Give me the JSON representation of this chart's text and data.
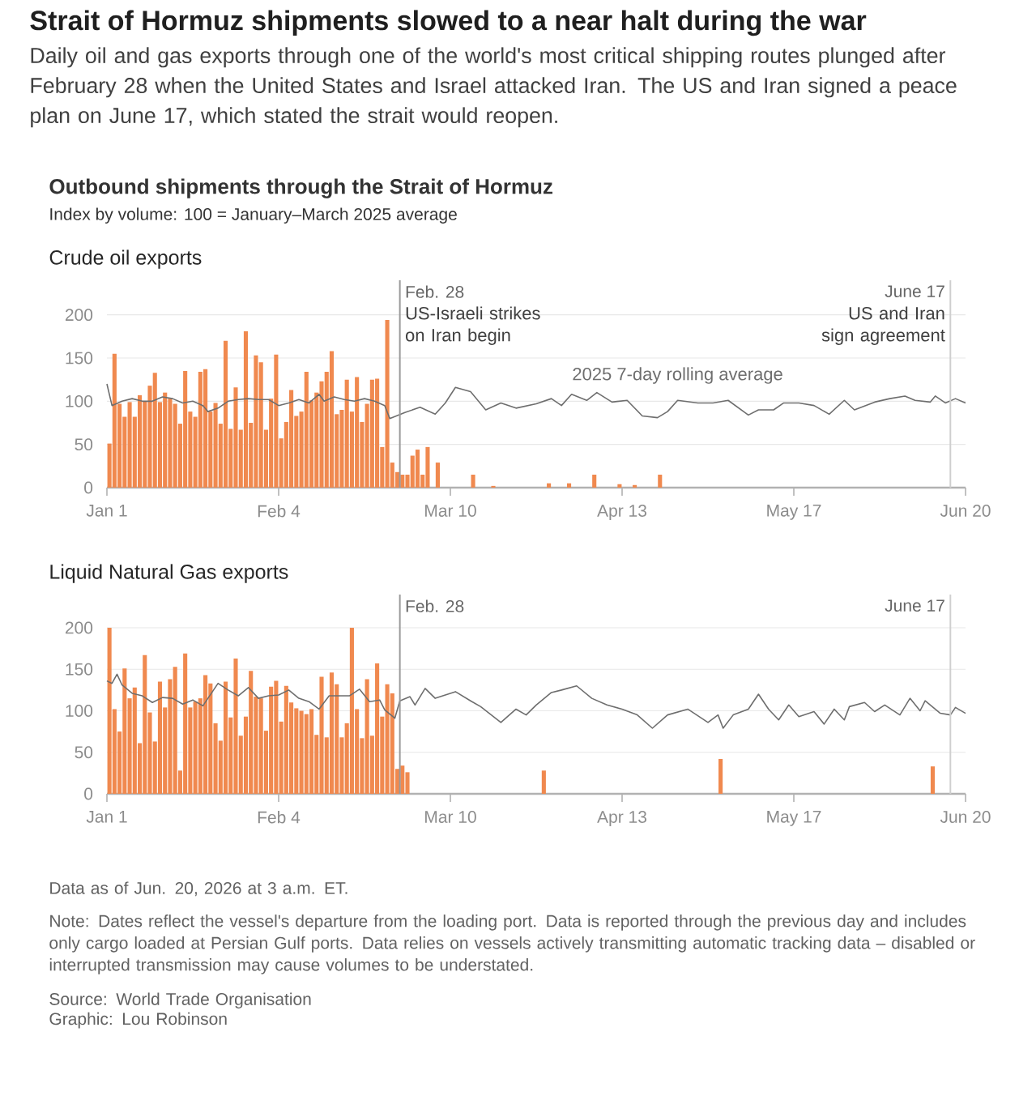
{
  "chart_data": [
    {
      "type": "other",
      "title": "Strait of Hormuz shipments slowed to a near halt during the war",
      "subtitle": "Daily oil and gas exports through one of the world's most critical shipping routes plunged after February 28 when the United States and Israel attacked Iran. The US and Iran signed a peace plan on June 17, which stated the strait would reopen.",
      "annotations": [
        "Outbound shipments through the Strait of Hormuz",
        "Index by volume: 100 = January–March 2025 average"
      ]
    },
    {
      "type": "bar",
      "title": "Crude oil exports",
      "xlim": [
        "2026-01-01",
        "2026-06-20"
      ],
      "ylim": [
        0,
        240
      ],
      "xticks": [
        {
          "value": "2026-01-01",
          "label": "Jan 1"
        },
        {
          "value": "2026-02-04",
          "label": "Feb 4"
        },
        {
          "value": "2026-03-10",
          "label": "Mar 10"
        },
        {
          "value": "2026-04-13",
          "label": "Apr 13"
        },
        {
          "value": "2026-05-17",
          "label": "May 17"
        },
        {
          "value": "2026-06-20",
          "label": "Jun 20"
        }
      ],
      "yticks": [
        0,
        50,
        100,
        150,
        200
      ],
      "grid": "y",
      "series": [
        {
          "type": "bar",
          "color": "#f0894f",
          "x": [
            "2026-01-01",
            "2026-01-02",
            "2026-01-03",
            "2026-01-04",
            "2026-01-05",
            "2026-01-06",
            "2026-01-07",
            "2026-01-08",
            "2026-01-09",
            "2026-01-10",
            "2026-01-11",
            "2026-01-12",
            "2026-01-13",
            "2026-01-14",
            "2026-01-15",
            "2026-01-16",
            "2026-01-17",
            "2026-01-18",
            "2026-01-19",
            "2026-01-20",
            "2026-01-21",
            "2026-01-22",
            "2026-01-23",
            "2026-01-24",
            "2026-01-25",
            "2026-01-26",
            "2026-01-27",
            "2026-01-28",
            "2026-01-29",
            "2026-01-30",
            "2026-01-31",
            "2026-02-01",
            "2026-02-02",
            "2026-02-03",
            "2026-02-04",
            "2026-02-05",
            "2026-02-06",
            "2026-02-07",
            "2026-02-08",
            "2026-02-09",
            "2026-02-10",
            "2026-02-11",
            "2026-02-12",
            "2026-02-13",
            "2026-02-14",
            "2026-02-15",
            "2026-02-16",
            "2026-02-17",
            "2026-02-18",
            "2026-02-19",
            "2026-02-20",
            "2026-02-21",
            "2026-02-22",
            "2026-02-23",
            "2026-02-24",
            "2026-02-25",
            "2026-02-26",
            "2026-02-27",
            "2026-02-28",
            "2026-03-01",
            "2026-03-02",
            "2026-03-03",
            "2026-03-04",
            "2026-03-05",
            "2026-03-07",
            "2026-03-14",
            "2026-03-18",
            "2026-03-29",
            "2026-04-02",
            "2026-04-07",
            "2026-04-12",
            "2026-04-15",
            "2026-04-20"
          ],
          "values": [
            51,
            155,
            97,
            82,
            99,
            82,
            107,
            100,
            118,
            133,
            99,
            110,
            103,
            97,
            74,
            135,
            88,
            82,
            134,
            137,
            88,
            98,
            74,
            170,
            68,
            116,
            67,
            181,
            75,
            153,
            145,
            67,
            103,
            154,
            57,
            76,
            113,
            83,
            88,
            134,
            101,
            110,
            123,
            134,
            158,
            85,
            90,
            125,
            88,
            128,
            76,
            97,
            125,
            126,
            47,
            194,
            29,
            18,
            15,
            15,
            37,
            44,
            15,
            47,
            29,
            15,
            2,
            5,
            5,
            15,
            4,
            3,
            15
          ]
        },
        {
          "type": "line",
          "name": "2025 7-day rolling average",
          "color": "#6e6e6e",
          "x": [
            "2026-01-01",
            "2026-01-02",
            "2026-01-04",
            "2026-01-06",
            "2026-01-08",
            "2026-01-10",
            "2026-01-12",
            "2026-01-14",
            "2026-01-16",
            "2026-01-18",
            "2026-01-20",
            "2026-01-21",
            "2026-01-23",
            "2026-01-25",
            "2026-01-27",
            "2026-01-29",
            "2026-01-31",
            "2026-02-02",
            "2026-02-04",
            "2026-02-06",
            "2026-02-08",
            "2026-02-10",
            "2026-02-12",
            "2026-02-13",
            "2026-02-15",
            "2026-02-17",
            "2026-02-19",
            "2026-02-21",
            "2026-02-23",
            "2026-02-25",
            "2026-02-26",
            "2026-03-01",
            "2026-03-04",
            "2026-03-07",
            "2026-03-09",
            "2026-03-11",
            "2026-03-14",
            "2026-03-17",
            "2026-03-20",
            "2026-03-23",
            "2026-03-27",
            "2026-03-30",
            "2026-04-01",
            "2026-04-03",
            "2026-04-06",
            "2026-04-08",
            "2026-04-11",
            "2026-04-14",
            "2026-04-17",
            "2026-04-20",
            "2026-04-22",
            "2026-04-24",
            "2026-04-28",
            "2026-05-01",
            "2026-05-04",
            "2026-05-08",
            "2026-05-10",
            "2026-05-13",
            "2026-05-15",
            "2026-05-18",
            "2026-05-21",
            "2026-05-24",
            "2026-05-27",
            "2026-05-29",
            "2026-06-02",
            "2026-06-05",
            "2026-06-08",
            "2026-06-10",
            "2026-06-13",
            "2026-06-14",
            "2026-06-16",
            "2026-06-18",
            "2026-06-20"
          ],
          "values": [
            120,
            95,
            100,
            103,
            100,
            100,
            105,
            103,
            98,
            100,
            95,
            88,
            92,
            100,
            102,
            103,
            102,
            102,
            95,
            98,
            102,
            98,
            108,
            100,
            105,
            102,
            100,
            103,
            100,
            95,
            80,
            87,
            93,
            85,
            98,
            116,
            111,
            90,
            98,
            92,
            97,
            103,
            95,
            108,
            101,
            110,
            99,
            101,
            83,
            81,
            88,
            101,
            98,
            98,
            101,
            84,
            90,
            90,
            98,
            98,
            95,
            85,
            101,
            90,
            99,
            103,
            106,
            101,
            99,
            106,
            98,
            103,
            98
          ]
        }
      ],
      "ref_lines": [
        {
          "axis": "x",
          "value": "2026-02-28",
          "label": "Feb. 28",
          "color": "#9a9a9a"
        },
        {
          "axis": "x",
          "value": "2026-06-17",
          "label": "June 17",
          "color": "#cfcfcf"
        }
      ],
      "annotations": [
        {
          "text": "US-Israeli strikes on Iran begin",
          "x": "2026-02-28",
          "y": 210
        },
        {
          "text": "US and Iran sign agreement",
          "x": "2026-06-17",
          "y": 210
        }
      ]
    },
    {
      "type": "bar",
      "title": "Liquid Natural Gas exports",
      "xlim": [
        "2026-01-01",
        "2026-06-20"
      ],
      "ylim": [
        0,
        240
      ],
      "xticks": [
        {
          "value": "2026-01-01",
          "label": "Jan 1"
        },
        {
          "value": "2026-02-04",
          "label": "Feb 4"
        },
        {
          "value": "2026-03-10",
          "label": "Mar 10"
        },
        {
          "value": "2026-04-13",
          "label": "Apr 13"
        },
        {
          "value": "2026-05-17",
          "label": "May 17"
        },
        {
          "value": "2026-06-20",
          "label": "Jun 20"
        }
      ],
      "yticks": [
        0,
        50,
        100,
        150,
        200
      ],
      "grid": "y",
      "series": [
        {
          "type": "bar",
          "color": "#f0894f",
          "x": [
            "2026-01-01",
            "2026-01-02",
            "2026-01-03",
            "2026-01-04",
            "2026-01-05",
            "2026-01-06",
            "2026-01-07",
            "2026-01-08",
            "2026-01-09",
            "2026-01-10",
            "2026-01-11",
            "2026-01-12",
            "2026-01-13",
            "2026-01-14",
            "2026-01-15",
            "2026-01-16",
            "2026-01-17",
            "2026-01-18",
            "2026-01-19",
            "2026-01-20",
            "2026-01-21",
            "2026-01-22",
            "2026-01-23",
            "2026-01-24",
            "2026-01-25",
            "2026-01-26",
            "2026-01-27",
            "2026-01-28",
            "2026-01-29",
            "2026-01-30",
            "2026-01-31",
            "2026-02-01",
            "2026-02-02",
            "2026-02-03",
            "2026-02-04",
            "2026-02-05",
            "2026-02-06",
            "2026-02-07",
            "2026-02-08",
            "2026-02-09",
            "2026-02-10",
            "2026-02-11",
            "2026-02-12",
            "2026-02-13",
            "2026-02-14",
            "2026-02-15",
            "2026-02-16",
            "2026-02-17",
            "2026-02-18",
            "2026-02-19",
            "2026-02-20",
            "2026-02-21",
            "2026-02-22",
            "2026-02-23",
            "2026-02-24",
            "2026-02-25",
            "2026-02-26",
            "2026-02-27",
            "2026-02-28",
            "2026-03-01",
            "2026-03-28",
            "2026-05-02",
            "2026-06-13"
          ],
          "values": [
            200,
            102,
            75,
            151,
            115,
            128,
            61,
            167,
            98,
            63,
            135,
            104,
            138,
            153,
            28,
            169,
            104,
            111,
            115,
            143,
            133,
            85,
            64,
            135,
            92,
            163,
            70,
            93,
            148,
            117,
            115,
            76,
            129,
            136,
            87,
            130,
            110,
            103,
            100,
            96,
            102,
            71,
            141,
            68,
            146,
            132,
            68,
            85,
            200,
            102,
            67,
            138,
            70,
            157,
            93,
            132,
            121,
            30,
            34,
            26,
            28,
            42,
            33
          ]
        },
        {
          "type": "line",
          "color": "#6e6e6e",
          "x": [
            "2026-01-01",
            "2026-01-02",
            "2026-01-03",
            "2026-01-04",
            "2026-01-06",
            "2026-01-08",
            "2026-01-10",
            "2026-01-12",
            "2026-01-14",
            "2026-01-16",
            "2026-01-18",
            "2026-01-20",
            "2026-01-21",
            "2026-01-23",
            "2026-01-25",
            "2026-01-27",
            "2026-01-29",
            "2026-01-31",
            "2026-02-02",
            "2026-02-04",
            "2026-02-06",
            "2026-02-08",
            "2026-02-10",
            "2026-02-12",
            "2026-02-14",
            "2026-02-16",
            "2026-02-18",
            "2026-02-20",
            "2026-02-22",
            "2026-02-24",
            "2026-02-25",
            "2026-02-27",
            "2026-02-28",
            "2026-03-02",
            "2026-03-03",
            "2026-03-05",
            "2026-03-07",
            "2026-03-11",
            "2026-03-14",
            "2026-03-16",
            "2026-03-20",
            "2026-03-23",
            "2026-03-25",
            "2026-03-27",
            "2026-03-30",
            "2026-04-01",
            "2026-04-04",
            "2026-04-07",
            "2026-04-10",
            "2026-04-13",
            "2026-04-16",
            "2026-04-19",
            "2026-04-22",
            "2026-04-26",
            "2026-04-30",
            "2026-05-02",
            "2026-05-03",
            "2026-05-05",
            "2026-05-08",
            "2026-05-10",
            "2026-05-12",
            "2026-05-14",
            "2026-05-16",
            "2026-05-18",
            "2026-05-21",
            "2026-05-23",
            "2026-05-25",
            "2026-05-27",
            "2026-05-28",
            "2026-05-31",
            "2026-06-02",
            "2026-06-04",
            "2026-06-07",
            "2026-06-09",
            "2026-06-11",
            "2026-06-12",
            "2026-06-15",
            "2026-06-17",
            "2026-06-18",
            "2026-06-20"
          ],
          "values": [
            136,
            133,
            144,
            131,
            121,
            118,
            110,
            116,
            115,
            108,
            113,
            106,
            115,
            133,
            125,
            118,
            128,
            115,
            118,
            119,
            125,
            115,
            111,
            102,
            118,
            118,
            118,
            126,
            111,
            113,
            101,
            91,
            112,
            117,
            107,
            127,
            115,
            123,
            112,
            105,
            86,
            102,
            95,
            107,
            122,
            125,
            130,
            115,
            107,
            102,
            95,
            79,
            95,
            102,
            86,
            95,
            79,
            95,
            102,
            120,
            102,
            89,
            107,
            93,
            99,
            84,
            102,
            89,
            105,
            110,
            99,
            107,
            95,
            115,
            100,
            112,
            97,
            95,
            104,
            97
          ]
        }
      ],
      "ref_lines": [
        {
          "axis": "x",
          "value": "2026-02-28",
          "label": "Feb. 28",
          "color": "#9a9a9a"
        },
        {
          "axis": "x",
          "value": "2026-06-17",
          "label": "June 17",
          "color": "#cfcfcf"
        }
      ],
      "annotations": [
        "Data as of Jun. 20, 2026 at 3 a.m. ET.",
        "Note: Dates reflect the vessel's departure from the loading port. Data is reported through the previous day and includes only cargo loaded at Persian Gulf ports. Data relies on vessels actively transmitting automatic tracking data – disabled or interrupted transmission may cause volumes to be understated.",
        "Source: World Trade Organisation",
        "Graphic: Lou Robinson"
      ]
    }
  ]
}
